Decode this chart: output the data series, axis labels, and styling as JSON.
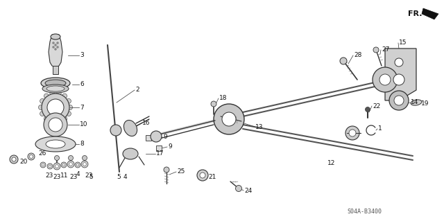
{
  "bg_color": "#ffffff",
  "diagram_code": "S04A-B3400",
  "fr_label": "FR.",
  "figsize": [
    6.4,
    3.19
  ],
  "dpi": 100,
  "label_fontsize": 6.5,
  "diagram_ref_fontsize": 6.0
}
